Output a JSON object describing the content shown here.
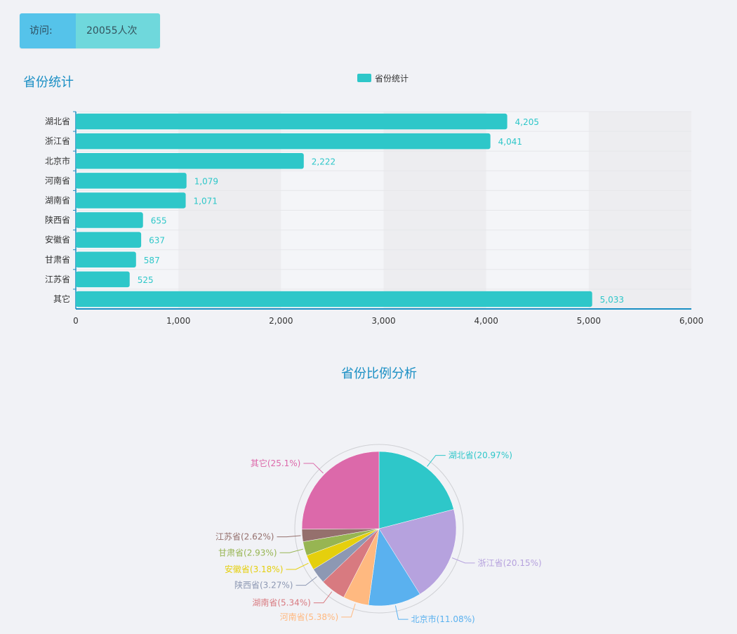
{
  "visit": {
    "label": "访问:",
    "value": "20055人次"
  },
  "colors": {
    "bar": "#2ec7c9",
    "title": "#1a8fc4",
    "axis": "#1a8fc4",
    "text": "#333333"
  },
  "chart_data": [
    {
      "type": "bar",
      "orientation": "horizontal",
      "title": "省份统计",
      "legend": [
        "省份统计"
      ],
      "legend_position": "top-center",
      "categories": [
        "湖北省",
        "浙江省",
        "北京市",
        "河南省",
        "湖南省",
        "陕西省",
        "安徽省",
        "甘肃省",
        "江苏省",
        "其它"
      ],
      "values": [
        4205,
        4041,
        2222,
        1079,
        1071,
        655,
        637,
        587,
        525,
        5033
      ],
      "value_labels": [
        "4,205",
        "4,041",
        "2,222",
        "1,079",
        "1,071",
        "655",
        "637",
        "587",
        "525",
        "5,033"
      ],
      "xlim": [
        0,
        6000
      ],
      "xticks": [
        0,
        1000,
        2000,
        3000,
        4000,
        5000,
        6000
      ],
      "xtick_labels": [
        "0",
        "1,000",
        "2,000",
        "3,000",
        "4,000",
        "5,000",
        "6,000"
      ]
    },
    {
      "type": "pie",
      "title": "省份比例分析",
      "slices": [
        {
          "name": "湖北省",
          "value": 20.97,
          "label": "湖北省(20.97%)",
          "color": "#2ec7c9"
        },
        {
          "name": "浙江省",
          "value": 20.15,
          "label": "浙江省(20.15%)",
          "color": "#b6a2de"
        },
        {
          "name": "北京市",
          "value": 11.08,
          "label": "北京市(11.08%)",
          "color": "#5ab1ef"
        },
        {
          "name": "河南省",
          "value": 5.38,
          "label": "河南省(5.38%)",
          "color": "#ffb980"
        },
        {
          "name": "湖南省",
          "value": 5.34,
          "label": "湖南省(5.34%)",
          "color": "#d87a80"
        },
        {
          "name": "陕西省",
          "value": 3.27,
          "label": "陕西省(3.27%)",
          "color": "#8d98b3"
        },
        {
          "name": "安徽省",
          "value": 3.18,
          "label": "安徽省(3.18%)",
          "color": "#e5cf0d"
        },
        {
          "name": "甘肃省",
          "value": 2.93,
          "label": "甘肃省(2.93%)",
          "color": "#97b552"
        },
        {
          "name": "江苏省",
          "value": 2.62,
          "label": "江苏省(2.62%)",
          "color": "#95706d"
        },
        {
          "name": "其它",
          "value": 25.1,
          "label": "其它(25.1%)",
          "color": "#dc69aa"
        }
      ]
    }
  ]
}
